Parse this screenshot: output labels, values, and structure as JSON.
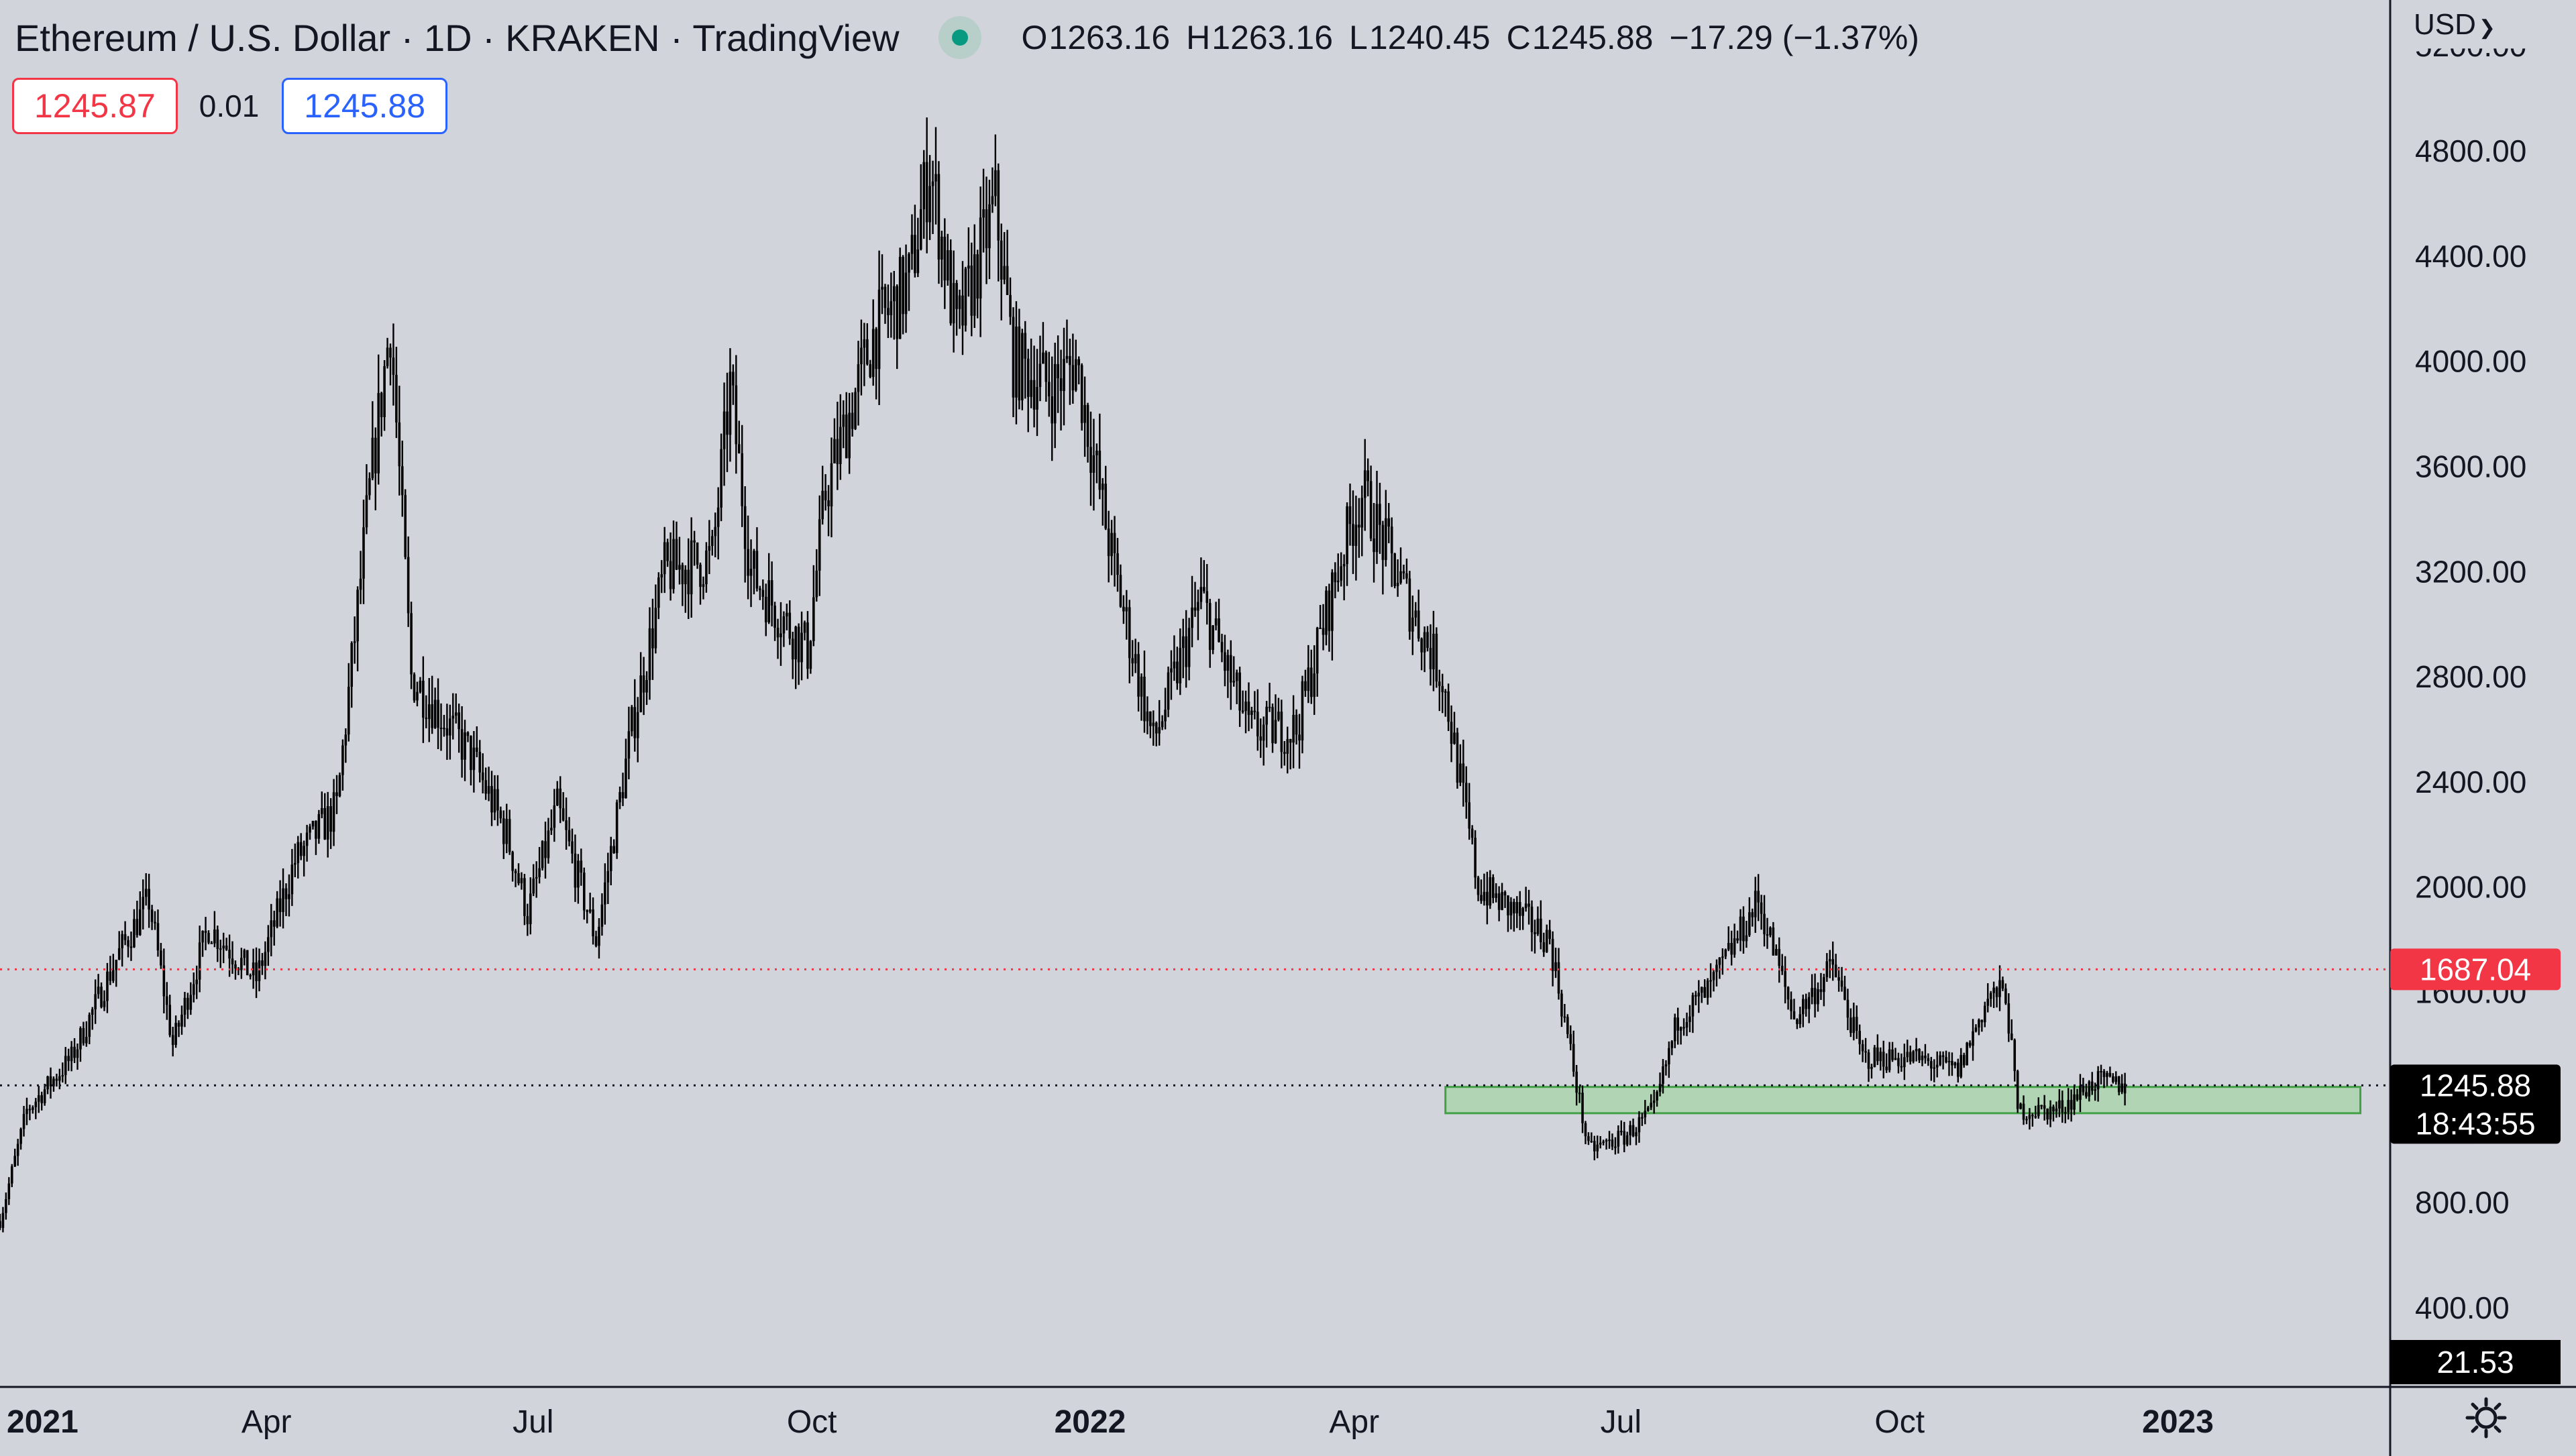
{
  "header": {
    "title": "Ethereum / U.S. Dollar · 1D · KRAKEN · TradingView",
    "open_label": "O",
    "open": "1263.16",
    "high_label": "H",
    "high": "1263.16",
    "low_label": "L",
    "low": "1240.45",
    "close_label": "C",
    "close": "1245.88",
    "change": "−17.29 (−1.37%)"
  },
  "quote": {
    "bid": "1245.87",
    "spread": "0.01",
    "ask": "1245.88"
  },
  "currency": "USD",
  "icons": {
    "status": "market-open-dot",
    "settings": "gear-icon",
    "currency_menu": "chevron-down-icon"
  },
  "chart_data": {
    "type": "candlestick",
    "y_axis": {
      "range": [
        0,
        5100
      ],
      "ticks": [
        400,
        800,
        1600,
        2000,
        2400,
        2800,
        3200,
        3600,
        4000,
        4400,
        4800
      ],
      "tick_labels": [
        "400.00",
        "800.00",
        "1600.00",
        "2000.00",
        "2400.00",
        "2800.00",
        "3200.00",
        "3600.00",
        "4000.00",
        "4400.00",
        "4800.00"
      ]
    },
    "x_axis": {
      "range": [
        "2021-01-01",
        "2023-03-14"
      ],
      "ticks": [
        {
          "date": "2021-01-01",
          "label": "2021",
          "bold": true
        },
        {
          "date": "2021-04-01",
          "label": "Apr",
          "bold": false
        },
        {
          "date": "2021-07-01",
          "label": "Jul",
          "bold": false
        },
        {
          "date": "2021-10-01",
          "label": "Oct",
          "bold": false
        },
        {
          "date": "2022-01-01",
          "label": "2022",
          "bold": true
        },
        {
          "date": "2022-04-01",
          "label": "Apr",
          "bold": false
        },
        {
          "date": "2022-07-01",
          "label": "Jul",
          "bold": false
        },
        {
          "date": "2022-10-01",
          "label": "Oct",
          "bold": false
        },
        {
          "date": "2023-01-01",
          "label": "2023",
          "bold": true
        }
      ]
    },
    "series": [
      {
        "price_path": [
          [
            "2021-01-01",
            730
          ],
          [
            "2021-01-10",
            1150
          ],
          [
            "2021-01-25",
            1350
          ],
          [
            "2021-02-10",
            1750
          ],
          [
            "2021-02-20",
            1950
          ],
          [
            "2021-02-28",
            1400
          ],
          [
            "2021-03-12",
            1850
          ],
          [
            "2021-03-28",
            1650
          ],
          [
            "2021-04-10",
            2100
          ],
          [
            "2021-04-24",
            2300
          ],
          [
            "2021-05-05",
            3500
          ],
          [
            "2021-05-12",
            4150
          ],
          [
            "2021-05-19",
            2800
          ],
          [
            "2021-05-26",
            2700
          ],
          [
            "2021-06-08",
            2500
          ],
          [
            "2021-06-20",
            2200
          ],
          [
            "2021-06-27",
            1900
          ],
          [
            "2021-07-07",
            2300
          ],
          [
            "2021-07-20",
            1800
          ],
          [
            "2021-08-01",
            2600
          ],
          [
            "2021-08-12",
            3200
          ],
          [
            "2021-08-28",
            3250
          ],
          [
            "2021-09-03",
            3900
          ],
          [
            "2021-09-10",
            3200
          ],
          [
            "2021-09-22",
            3000
          ],
          [
            "2021-09-29",
            2900
          ],
          [
            "2021-10-05",
            3500
          ],
          [
            "2021-10-21",
            4100
          ],
          [
            "2021-11-02",
            4300
          ],
          [
            "2021-11-09",
            4750
          ],
          [
            "2021-11-18",
            4100
          ],
          [
            "2021-12-01",
            4600
          ],
          [
            "2021-12-07",
            4000
          ],
          [
            "2021-12-20",
            3900
          ],
          [
            "2021-12-28",
            4000
          ],
          [
            "2022-01-10",
            3200
          ],
          [
            "2022-01-23",
            2550
          ],
          [
            "2022-02-08",
            3100
          ],
          [
            "2022-02-24",
            2600
          ],
          [
            "2022-03-12",
            2600
          ],
          [
            "2022-03-28",
            3300
          ],
          [
            "2022-04-03",
            3500
          ],
          [
            "2022-04-20",
            3050
          ],
          [
            "2022-04-30",
            2800
          ],
          [
            "2022-05-12",
            2000
          ],
          [
            "2022-05-25",
            1900
          ],
          [
            "2022-06-05",
            1800
          ],
          [
            "2022-06-18",
            1000
          ],
          [
            "2022-06-30",
            1050
          ],
          [
            "2022-07-10",
            1150
          ],
          [
            "2022-07-18",
            1500
          ],
          [
            "2022-07-28",
            1600
          ],
          [
            "2022-08-14",
            1950
          ],
          [
            "2022-08-26",
            1500
          ],
          [
            "2022-09-08",
            1700
          ],
          [
            "2022-09-18",
            1350
          ],
          [
            "2022-10-05",
            1350
          ],
          [
            "2022-10-20",
            1300
          ],
          [
            "2022-10-30",
            1580
          ],
          [
            "2022-11-05",
            1600
          ],
          [
            "2022-11-09",
            1150
          ],
          [
            "2022-11-22",
            1150
          ],
          [
            "2022-12-05",
            1260
          ],
          [
            "2022-12-15",
            1246
          ]
        ]
      }
    ],
    "support_zone": {
      "low": 1140,
      "high": 1240,
      "start": "2022-05-01",
      "end": "2023-03-04",
      "color": "#a5d6a7"
    },
    "lines": [
      {
        "value": 1687.04,
        "label": "1687.04",
        "color": "#f23645",
        "style": "dotted"
      },
      {
        "value": 1245.88,
        "label": "1245.88",
        "color": "#131722",
        "style": "dotted",
        "countdown": "18:43:55"
      }
    ],
    "volume_label": "21.53",
    "overlapping_tick_label": "5200.00",
    "grid": false
  }
}
